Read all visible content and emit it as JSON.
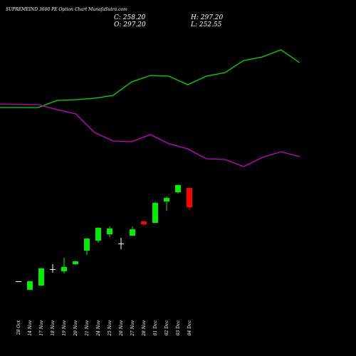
{
  "chart_data": {
    "type": "candlestick",
    "title": "SUPREMEIND 3600 PE Option Chart MunafaSutra.com",
    "info": [
      "C: 258.20",
      "H: 297.20",
      "O: 297.20",
      "L: 252.55"
    ],
    "categories": [
      "28 Oct",
      "14 Nov",
      "17 Nov",
      "18 Nov",
      "19 Nov",
      "20 Nov",
      "21 Nov",
      "24 Nov",
      "25 Nov",
      "26 Nov",
      "27 Nov",
      "28 Nov",
      "01 Dec",
      "02 Dec",
      "03 Dec",
      "04 Dec"
    ],
    "open": [
      108.0,
      90.6,
      99.3,
      132.5,
      128.2,
      142.6,
      170.1,
      190.3,
      203.3,
      184.5,
      200.4,
      229.3,
      226.4,
      269.8,
      288.5,
      297.2
    ],
    "high": [
      108.0,
      108.0,
      135.4,
      142.6,
      155.6,
      149.9,
      196.1,
      217.8,
      219.2,
      196.1,
      219.2,
      230.8,
      268.3,
      279.9,
      304.4,
      297.2
    ],
    "low": [
      108.0,
      90.6,
      97.9,
      125.3,
      123.9,
      141.2,
      161.4,
      186.0,
      197.5,
      173.0,
      200.4,
      220.6,
      226.4,
      251.0,
      285.6,
      252.55
    ],
    "close": [
      108.0,
      108.0,
      134.0,
      132.5,
      136.9,
      148.4,
      194.6,
      216.3,
      214.9,
      184.5,
      213.4,
      223.5,
      266.9,
      277.0,
      303.0,
      258.2
    ],
    "up_color": "#00ee00",
    "down_color": "#ff0000",
    "doji_color": "#ffffff",
    "lines": [
      {
        "color": "#00dd00",
        "values": [
          460.4,
          460.4,
          474.9,
          476.3,
          479.2,
          485.0,
          512.4,
          525.4,
          524.0,
          506.6,
          524.0,
          531.2,
          555.8,
          563.0,
          577.4,
          551.4
        ]
      },
      {
        "color": "#cc00cc",
        "values": [
          467.6,
          466.2,
          456.1,
          447.4,
          409.9,
          392.5,
          391.1,
          405.5,
          386.8,
          376.6,
          356.4,
          355.0,
          340.5,
          359.3,
          370.9,
          360.8
        ]
      }
    ]
  }
}
